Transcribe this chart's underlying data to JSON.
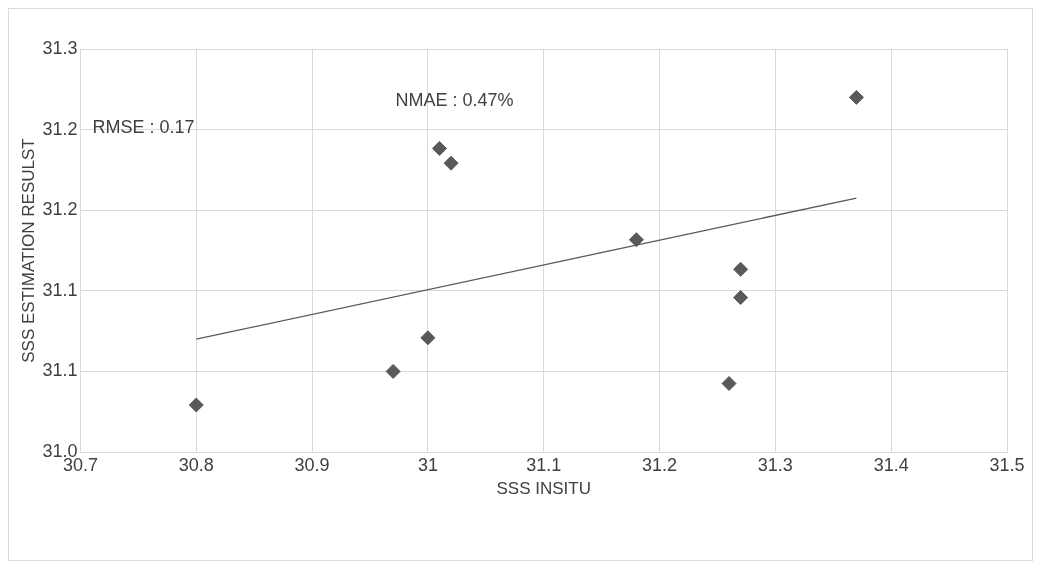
{
  "chart_data": {
    "type": "scatter",
    "xlabel": "SSS INSITU",
    "ylabel": "SSS ESTIMATION RESULST",
    "xlim": [
      30.7,
      31.5
    ],
    "xticks": [
      30.7,
      30.8,
      30.9,
      {
        "value": 31,
        "label": "31"
      },
      31.1,
      31.2,
      31.3,
      31.4,
      31.5
    ],
    "ylim": [
      31.0,
      31.3
    ],
    "yticks": [
      {
        "value": 31.0,
        "label": "31.0"
      },
      {
        "value": 31.06,
        "label": "31.1"
      },
      {
        "value": 31.12,
        "label": "31.1"
      },
      {
        "value": 31.18,
        "label": "31.2"
      },
      {
        "value": 31.24,
        "label": "31.2"
      },
      {
        "value": 31.3,
        "label": "31.3"
      }
    ],
    "grid": true,
    "legend": false,
    "marker": "diamond",
    "series": [
      {
        "color": "#595959",
        "x": [
          30.8,
          30.97,
          31.0,
          31.01,
          31.02,
          31.18,
          31.26,
          31.27,
          31.27,
          31.37
        ],
        "values": [
          31.035,
          31.06,
          31.085,
          31.226,
          31.215,
          31.158,
          31.051,
          31.115,
          31.136,
          31.264
        ]
      },
      {
        "type": "line",
        "color": "#595959",
        "marker": "none",
        "x": [
          30.8,
          31.37
        ],
        "values": [
          31.084,
          31.189
        ]
      }
    ],
    "annotations": [
      "RMSE : 0.17",
      "NMAE : 0.47%"
    ]
  }
}
